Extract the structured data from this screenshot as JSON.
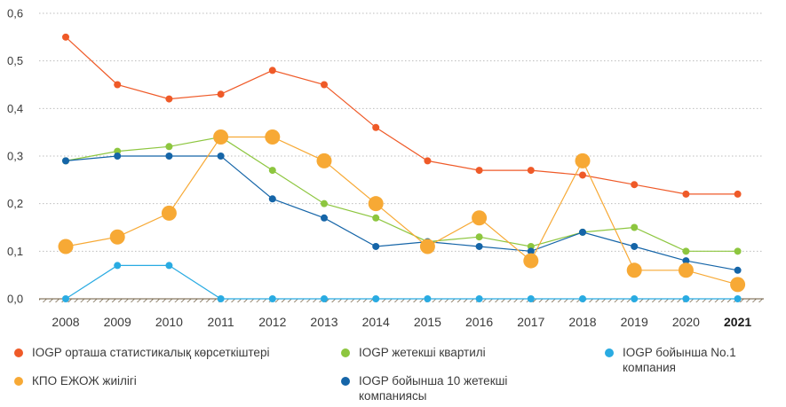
{
  "chart_data": {
    "type": "line",
    "categories": [
      "2008",
      "2009",
      "2010",
      "2011",
      "2012",
      "2013",
      "2014",
      "2015",
      "2016",
      "2017",
      "2018",
      "2019",
      "2020",
      "2021"
    ],
    "highlight_category": "2021",
    "ylim": [
      0,
      0.6
    ],
    "yticks": [
      "0,0",
      "0,1",
      "0,2",
      "0,3",
      "0,4",
      "0,5",
      "0,6"
    ],
    "grid": true,
    "legend_position": "bottom",
    "series": [
      {
        "name": "IOGP орташа статистикалық көрсеткіштері",
        "color": "#ef5a28",
        "marker": "small",
        "values": [
          0.55,
          0.45,
          0.42,
          0.43,
          0.48,
          0.45,
          0.36,
          0.29,
          0.27,
          0.27,
          0.26,
          0.24,
          0.22,
          0.22
        ]
      },
      {
        "name": "IOGP жетекші квартилі",
        "color": "#8dc63f",
        "marker": "small",
        "values": [
          0.29,
          0.31,
          0.32,
          0.34,
          0.27,
          0.2,
          0.17,
          0.12,
          0.13,
          0.11,
          0.14,
          0.15,
          0.1,
          0.1
        ]
      },
      {
        "name": "IOGP бойынша 10 жетекші\nкомпаниясы",
        "color": "#1565a8",
        "marker": "small",
        "values": [
          0.29,
          0.3,
          0.3,
          0.3,
          0.21,
          0.17,
          0.11,
          0.12,
          0.11,
          0.1,
          0.14,
          0.11,
          0.08,
          0.06
        ]
      },
      {
        "name": "IOGP бойынша No.1\nкомпания",
        "color": "#29abe2",
        "marker": "small",
        "values": [
          0.0,
          0.07,
          0.07,
          0.0,
          0.0,
          0.0,
          0.0,
          0.0,
          0.0,
          0.0,
          0.0,
          0.0,
          0.0,
          0.0
        ]
      },
      {
        "name": "КПО ЕЖОЖ жиілігі",
        "color": "#f7a935",
        "marker": "large",
        "values": [
          0.11,
          0.13,
          0.18,
          0.34,
          0.34,
          0.29,
          0.2,
          0.11,
          0.17,
          0.08,
          0.29,
          0.06,
          0.06,
          0.03
        ]
      }
    ]
  },
  "legend": [
    {
      "label": "IOGP орташа статистикалық көрсеткіштері",
      "color": "#ef5a28"
    },
    {
      "label": "КПО ЕЖОЖ жиілігі",
      "color": "#f7a935"
    },
    {
      "label": "IOGP жетекші квартилі",
      "color": "#8dc63f"
    },
    {
      "label": "IOGP бойынша 10 жетекші\nкомпаниясы",
      "color": "#1565a8"
    },
    {
      "label": "IOGP бойынша No.1\nкомпания",
      "color": "#29abe2"
    }
  ]
}
